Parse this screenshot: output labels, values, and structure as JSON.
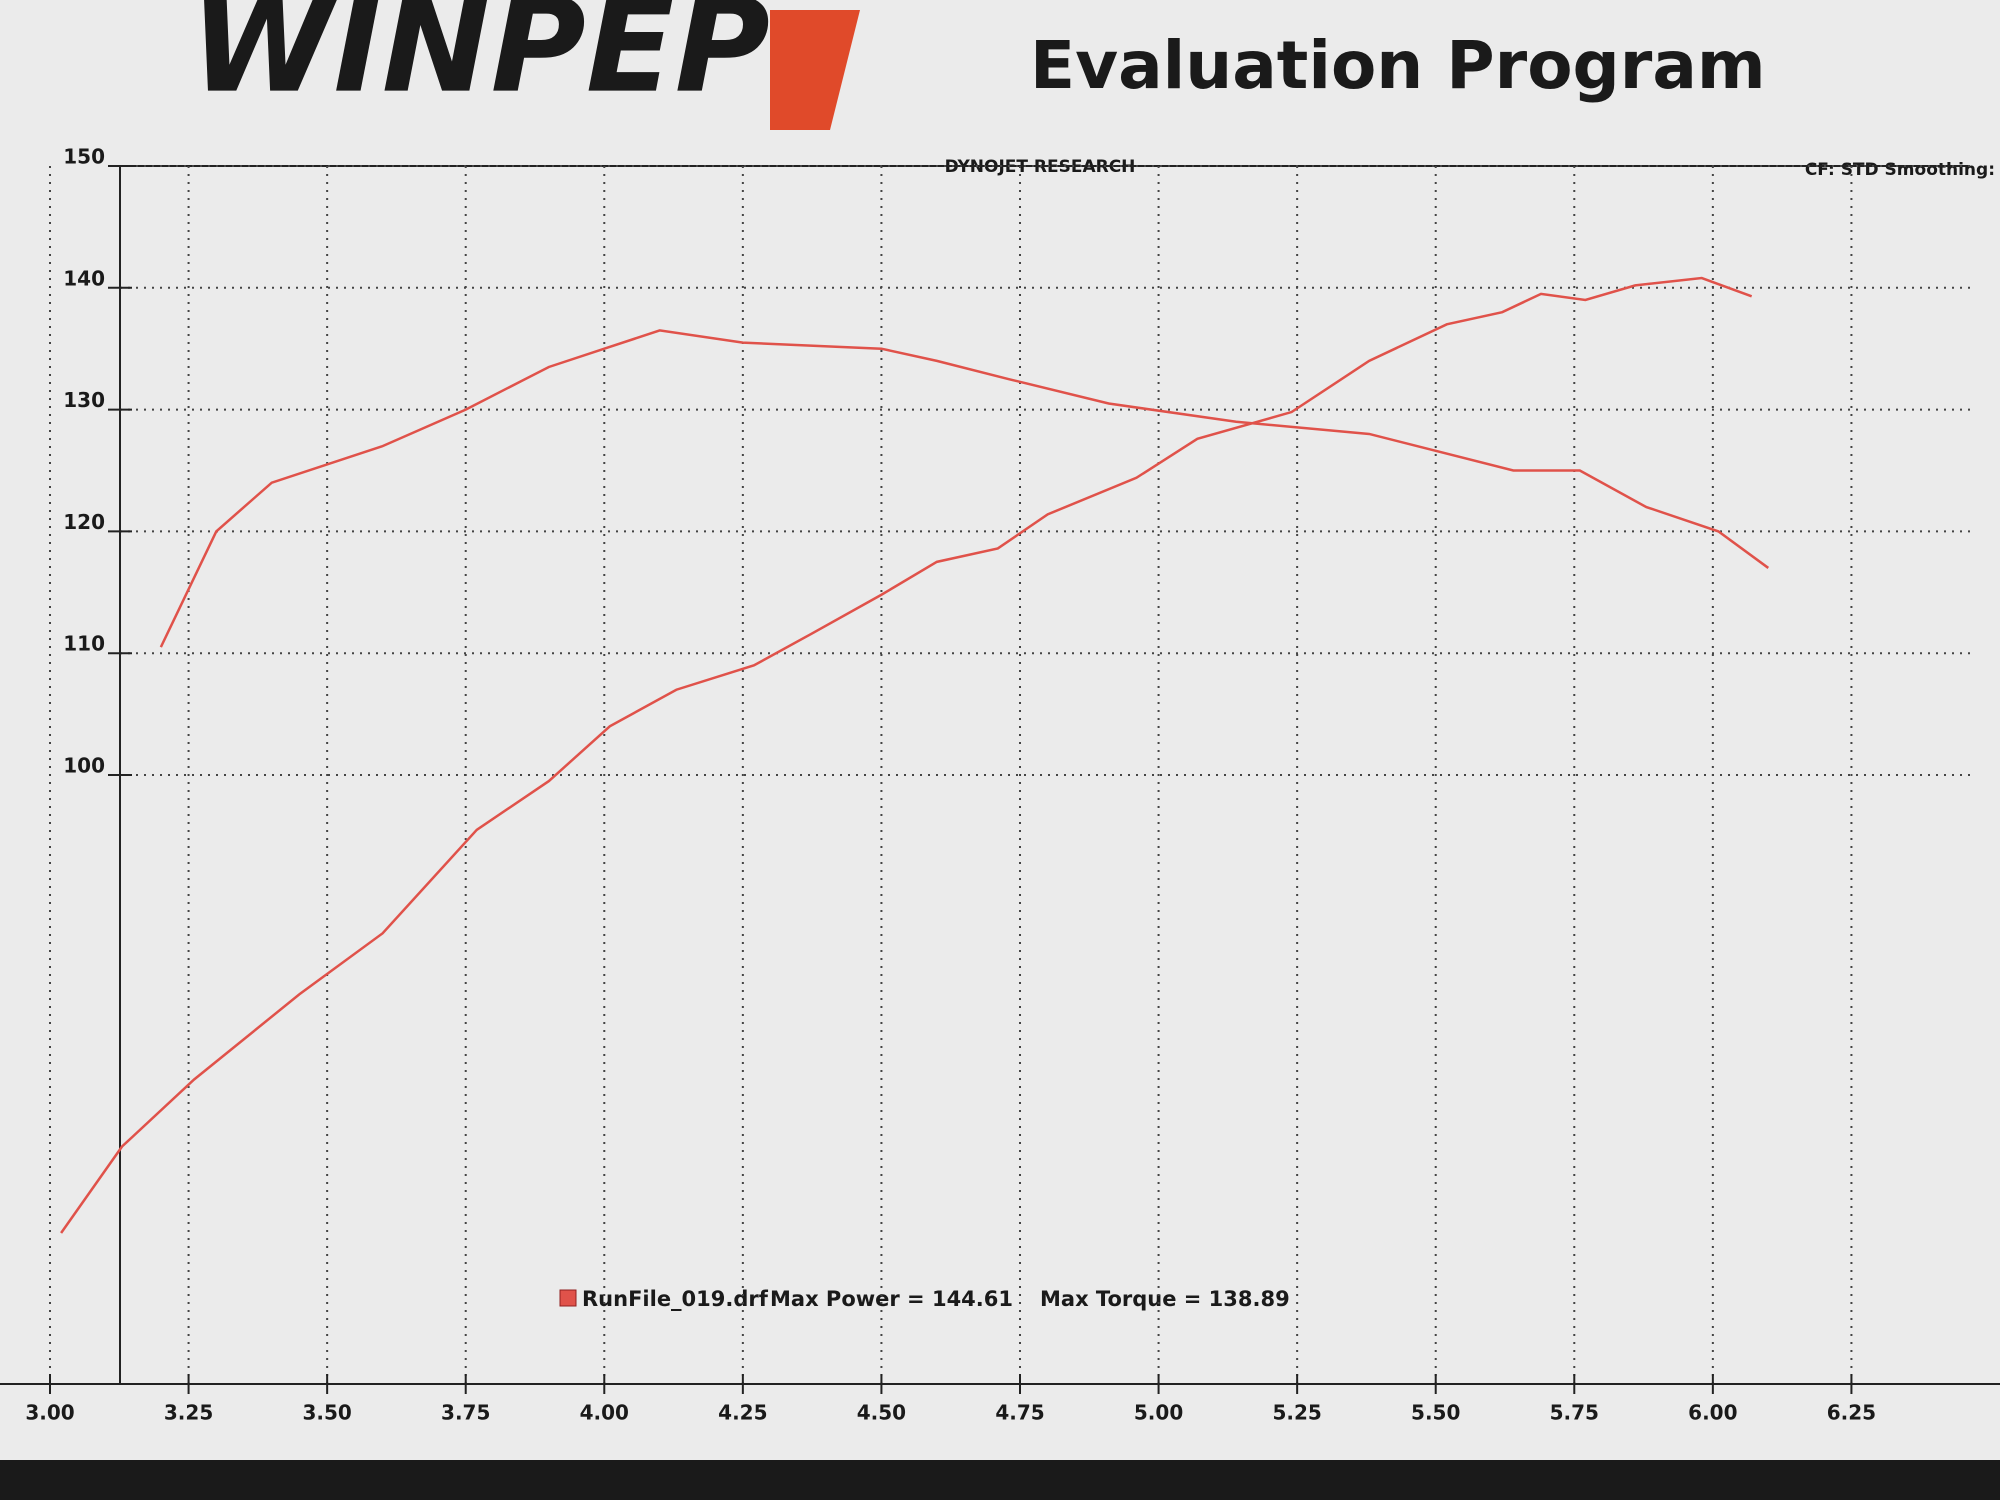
{
  "chart_data": {
    "type": "line",
    "logo": "WINPEP",
    "subtitle": "Evaluation Program",
    "title": "DYNOJET RESEARCH",
    "corner_note": "CF: STD  Smoothing:",
    "legend": "RunFile_019.drf",
    "annotations": [
      "Max Power = 144.61",
      "Max Torque = 138.89"
    ],
    "xlim": [
      3,
      6.5
    ],
    "ylim": [
      50,
      150
    ],
    "xticks": [
      {
        "value": 3,
        "label": "3.00"
      },
      {
        "value": 3.25,
        "label": "3.25"
      },
      {
        "value": 3.5,
        "label": "3.50"
      },
      {
        "value": 3.75,
        "label": "3.75"
      },
      {
        "value": 4,
        "label": "4.00"
      },
      {
        "value": 4.25,
        "label": "4.25"
      },
      {
        "value": 4.5,
        "label": "4.50"
      },
      {
        "value": 4.75,
        "label": "4.75"
      },
      {
        "value": 5,
        "label": "5.00"
      },
      {
        "value": 5.25,
        "label": "5.25"
      },
      {
        "value": 5.5,
        "label": "5.50"
      },
      {
        "value": 5.75,
        "label": "5.75"
      },
      {
        "value": 6,
        "label": "6.00"
      },
      {
        "value": 6.25,
        "label": "6.25"
      }
    ],
    "yticks": [
      100,
      110,
      120,
      130,
      140,
      150
    ],
    "grid": true,
    "series": [
      {
        "color": "#e0524a",
        "x": [
          3.02,
          3.13,
          3.26,
          3.45,
          3.6,
          3.77,
          3.9,
          4.01,
          4.13,
          4.27,
          4.37,
          4.5,
          4.6,
          4.71,
          4.8,
          4.96,
          5.07,
          5.24,
          5.38,
          5.52,
          5.62,
          5.69,
          5.77,
          5.86,
          5.98,
          6.07
        ],
        "values": [
          62.4,
          69.5,
          75,
          82,
          87,
          95.5,
          99.5,
          104,
          107,
          109,
          111.5,
          114.8,
          117.5,
          118.6,
          121.4,
          124.4,
          127.6,
          129.8,
          134,
          137,
          138,
          139.5,
          139,
          140.2,
          140.8,
          139.3
        ]
      },
      {
        "color": "#e0524a",
        "x": [
          3.2,
          3.3,
          3.4,
          3.6,
          3.75,
          3.9,
          4.0,
          4.1,
          4.25,
          4.5,
          4.6,
          4.73,
          4.91,
          5.14,
          5.38,
          5.64,
          5.76,
          5.88,
          6.01,
          6.1
        ],
        "values": [
          110.5,
          120,
          124,
          127,
          130,
          133.5,
          135,
          136.5,
          135.5,
          135,
          134,
          132.5,
          130.5,
          129,
          128,
          125,
          125,
          122,
          120,
          117
        ]
      }
    ]
  }
}
